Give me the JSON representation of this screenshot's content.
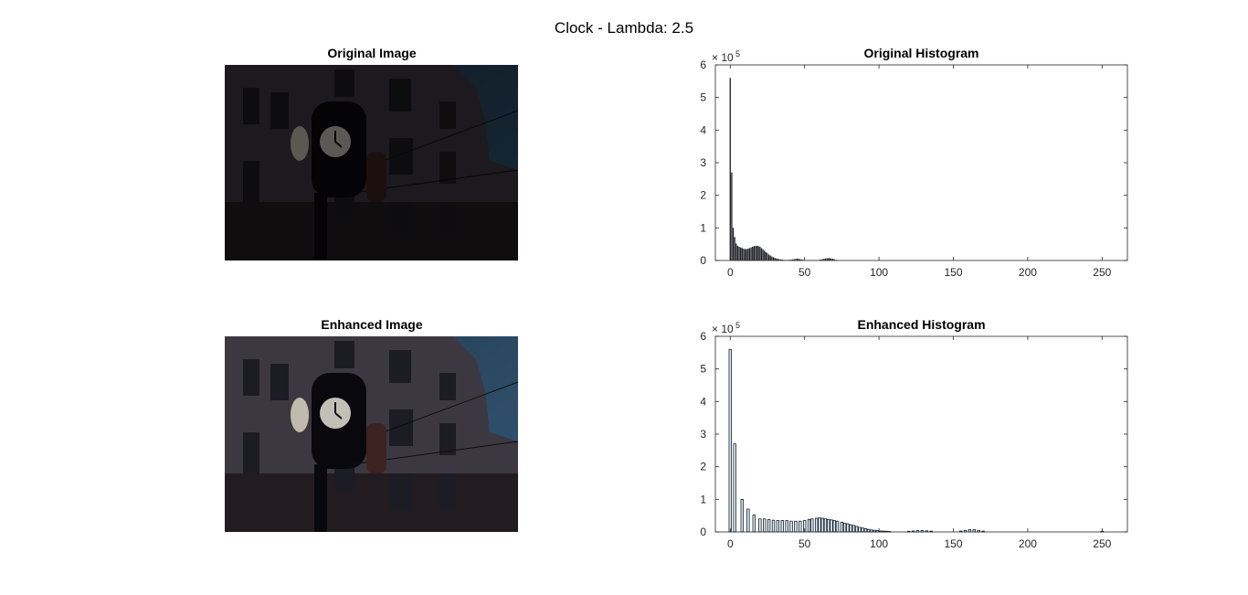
{
  "title": "Clock - Lambda: 2.5",
  "images": [
    {
      "title": "Original Image"
    },
    {
      "title": "Enhanced Image"
    }
  ],
  "chart_data": [
    {
      "type": "bar",
      "title": "Original Histogram",
      "x": [
        0,
        1,
        2,
        3,
        4,
        5,
        6,
        7,
        8,
        9,
        10,
        11,
        12,
        13,
        14,
        15,
        16,
        17,
        18,
        19,
        20,
        21,
        22,
        23,
        24,
        25,
        26,
        27,
        28,
        29,
        30,
        31,
        32,
        33,
        34,
        35,
        36,
        37,
        38,
        39,
        40,
        41,
        42,
        43,
        44,
        45,
        46,
        47,
        48,
        49,
        50,
        51,
        52,
        53,
        54,
        55,
        56,
        57,
        58,
        59,
        60,
        61,
        62,
        63,
        64,
        65,
        66,
        67,
        68,
        69,
        70,
        71,
        72
      ],
      "values": [
        560000,
        270000,
        100000,
        72000,
        52000,
        45000,
        42000,
        40000,
        38000,
        36000,
        35000,
        35000,
        36000,
        38000,
        40000,
        42000,
        44000,
        45000,
        45000,
        44000,
        42000,
        38000,
        34000,
        30000,
        26000,
        22000,
        18000,
        15000,
        12000,
        10000,
        8000,
        6000,
        5000,
        4000,
        3000,
        2500,
        2000,
        1500,
        1500,
        1500,
        2000,
        2500,
        3000,
        4000,
        5000,
        5500,
        5000,
        4000,
        3000,
        2000,
        1500,
        1000,
        1000,
        1000,
        1000,
        1000,
        1000,
        1000,
        1000,
        1000,
        2000,
        3000,
        4000,
        5000,
        6000,
        7000,
        7000,
        7000,
        6000,
        5000,
        3500,
        2000,
        1000
      ],
      "color": "#1b1b24",
      "xlim": [
        -10,
        267
      ],
      "xticks": [
        0,
        50,
        100,
        150,
        200,
        250
      ],
      "ylim": [
        0,
        600000
      ],
      "yticks": [
        0,
        {
          "value": 100000,
          "label": "1"
        },
        {
          "value": 200000,
          "label": "2"
        },
        {
          "value": 300000,
          "label": "3"
        },
        {
          "value": 400000,
          "label": "4"
        },
        {
          "value": 500000,
          "label": "5"
        },
        {
          "value": 600000,
          "label": "6"
        }
      ],
      "y_exponent": {
        "base": "× 10",
        "power": "5"
      }
    },
    {
      "type": "bar",
      "title": "Enhanced Histogram",
      "x": [
        0,
        3,
        8,
        12,
        16,
        20,
        23,
        26,
        29,
        32,
        35,
        38,
        41,
        44,
        47,
        50,
        53,
        55,
        58,
        60,
        62,
        64,
        66,
        68,
        70,
        72,
        75,
        77,
        79,
        81,
        83,
        85,
        87,
        89,
        91,
        93,
        95,
        97,
        99,
        101,
        103,
        105,
        107,
        120,
        123,
        126,
        129,
        132,
        135,
        155,
        158,
        161,
        164,
        167,
        170,
        250
      ],
      "values": [
        560000,
        270000,
        100000,
        70000,
        52000,
        40000,
        40000,
        38000,
        36000,
        35000,
        35000,
        35000,
        33000,
        33000,
        33000,
        35000,
        38000,
        40000,
        42000,
        43000,
        42000,
        40000,
        38000,
        37000,
        35000,
        33000,
        30000,
        27000,
        25000,
        22000,
        20000,
        17000,
        14000,
        12000,
        10000,
        8000,
        6000,
        5000,
        4000,
        3000,
        2500,
        2000,
        1500,
        2000,
        3000,
        4000,
        4000,
        3500,
        2500,
        3000,
        5000,
        7000,
        7000,
        5000,
        2500,
        2000
      ],
      "color": "#dfe8f0",
      "edgecolor": "#10202e",
      "xlim": [
        -10,
        267
      ],
      "xticks": [
        0,
        50,
        100,
        150,
        200,
        250
      ],
      "ylim": [
        0,
        600000
      ],
      "yticks": [
        0,
        {
          "value": 100000,
          "label": "1"
        },
        {
          "value": 200000,
          "label": "2"
        },
        {
          "value": 300000,
          "label": "3"
        },
        {
          "value": 400000,
          "label": "4"
        },
        {
          "value": 500000,
          "label": "5"
        },
        {
          "value": 600000,
          "label": "6"
        }
      ],
      "y_exponent": {
        "base": "× 10",
        "power": "5"
      }
    }
  ]
}
